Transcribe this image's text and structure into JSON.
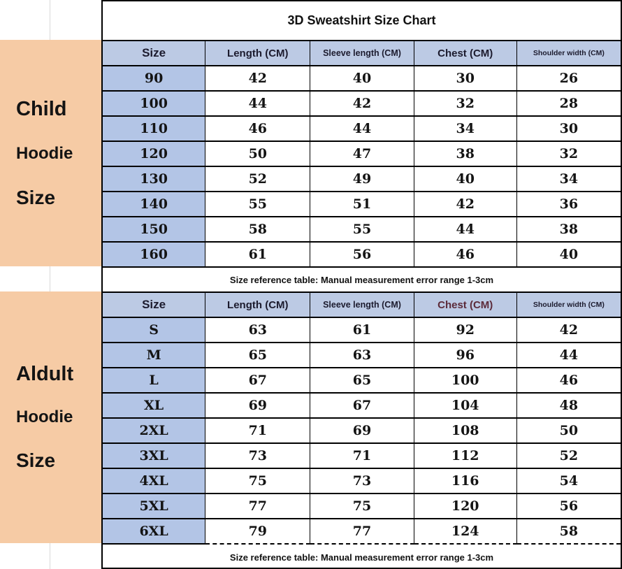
{
  "title": "3D Sweatshirt Size Chart",
  "sidebar": {
    "child": {
      "line1": "Child",
      "line2": "Hoodie",
      "line3": "Size"
    },
    "adult": {
      "line1": "Aldult",
      "line2": "Hoodie",
      "line3": "Size"
    }
  },
  "columns": [
    "Size",
    "Length (CM)",
    "Sleeve length (CM)",
    "Chest (CM)",
    "Shoulder width (CM)"
  ],
  "note": "Size reference table: Manual measurement error range 1-3cm",
  "child_table": {
    "rows": [
      [
        "90",
        "42",
        "40",
        "30",
        "26"
      ],
      [
        "100",
        "44",
        "42",
        "32",
        "28"
      ],
      [
        "110",
        "46",
        "44",
        "34",
        "30"
      ],
      [
        "120",
        "50",
        "47",
        "38",
        "32"
      ],
      [
        "130",
        "52",
        "49",
        "40",
        "34"
      ],
      [
        "140",
        "55",
        "51",
        "42",
        "36"
      ],
      [
        "150",
        "58",
        "55",
        "44",
        "38"
      ],
      [
        "160",
        "61",
        "56",
        "46",
        "40"
      ]
    ]
  },
  "adult_table": {
    "rows": [
      [
        "S",
        "63",
        "61",
        "92",
        "42"
      ],
      [
        "M",
        "65",
        "63",
        "96",
        "44"
      ],
      [
        "L",
        "67",
        "65",
        "100",
        "46"
      ],
      [
        "XL",
        "69",
        "67",
        "104",
        "48"
      ],
      [
        "2XL",
        "71",
        "69",
        "108",
        "50"
      ],
      [
        "3XL",
        "73",
        "71",
        "112",
        "52"
      ],
      [
        "4XL",
        "75",
        "73",
        "116",
        "54"
      ],
      [
        "5XL",
        "77",
        "75",
        "120",
        "56"
      ],
      [
        "6XL",
        "79",
        "77",
        "124",
        "58"
      ]
    ]
  },
  "colors": {
    "peach": "#F6CBA5",
    "header-blue": "#BCCAE4",
    "size-blue": "#B3C5E6",
    "header-text": "#1C1B2E",
    "chest-accent": "#5C2B3A",
    "data-text": "#141414",
    "grid": "#000000",
    "divider": "#D9D9D9"
  }
}
